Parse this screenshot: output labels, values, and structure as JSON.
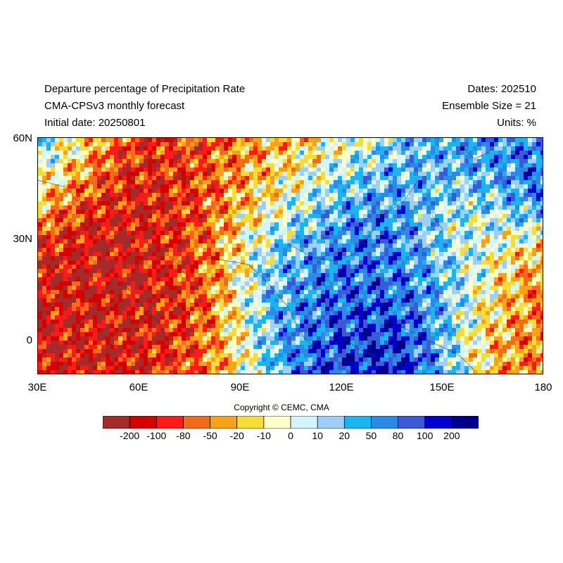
{
  "header": {
    "title": "Departure percentage of Precipitation Rate",
    "model": "CMA-CPSv3 monthly forecast",
    "initial_date": "Initial date: 20250801",
    "dates": "Dates: 202510",
    "ensemble": "Ensemble Size = 21",
    "units": "Units: %"
  },
  "map": {
    "lat_labels": [
      "60N",
      "30N",
      "0"
    ],
    "lon_labels": [
      "30E",
      "60E",
      "90E",
      "120E",
      "150E",
      "180"
    ],
    "extent": {
      "lon": [
        30,
        180
      ],
      "lat": [
        -10,
        60
      ]
    }
  },
  "copyright": "Copyright © CEMC, CMA",
  "colorbar": {
    "labels": [
      "-200",
      "-100",
      "-80",
      "-50",
      "-20",
      "-10",
      "0",
      "10",
      "20",
      "50",
      "80",
      "100",
      "200"
    ],
    "colors": [
      "#a52a2a",
      "#d40000",
      "#ff1a1a",
      "#f26a1a",
      "#f7a21a",
      "#f7dc3a",
      "#ffffc8",
      "#d2f5ff",
      "#9ecff7",
      "#1ab4f0",
      "#2a8ae6",
      "#3a5ad7",
      "#0000d2",
      "#00008c"
    ]
  }
}
